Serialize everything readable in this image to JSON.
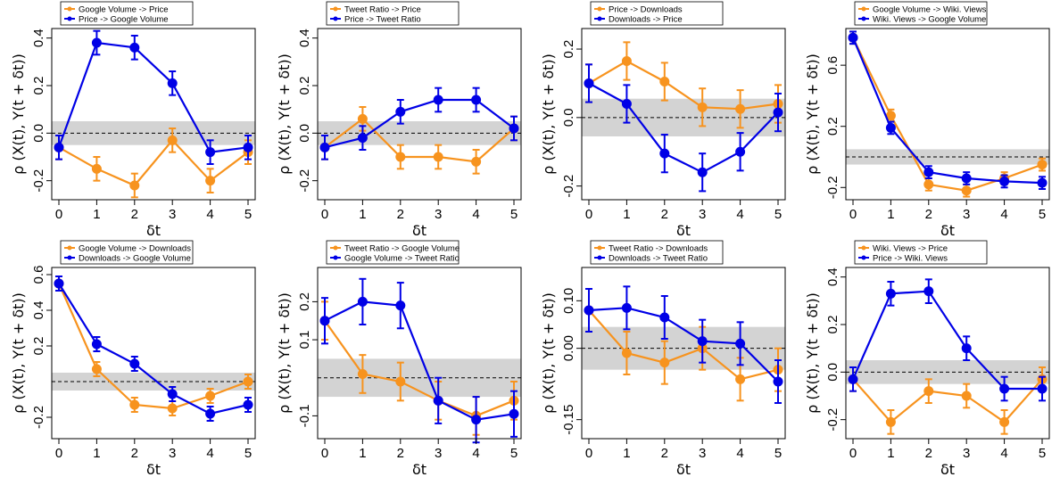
{
  "colors": {
    "series_a": "#F7931E",
    "series_b": "#0000E6",
    "band": "#D3D3D3"
  },
  "chart_data": [
    {
      "type": "line",
      "xlabel": "δt",
      "ylabel": "ρ (X(t), Y(t + δt))",
      "x": [
        0,
        1,
        2,
        3,
        4,
        5
      ],
      "ylim": [
        -0.28,
        0.44
      ],
      "yticks": [
        -0.2,
        0.0,
        0.2,
        0.4
      ],
      "ytick_labels": [
        "-0.2",
        "0.0",
        "0.2",
        "0.4"
      ],
      "band": [
        -0.05,
        0.05
      ],
      "series": [
        {
          "name": "Google Volume -> Price",
          "values": [
            -0.06,
            -0.15,
            -0.22,
            -0.03,
            -0.2,
            -0.08
          ],
          "err": [
            0.05,
            0.05,
            0.05,
            0.05,
            0.05,
            0.05
          ]
        },
        {
          "name": "Price -> Google Volume",
          "values": [
            -0.06,
            0.38,
            0.36,
            0.21,
            -0.08,
            -0.06
          ],
          "err": [
            0.05,
            0.05,
            0.05,
            0.05,
            0.05,
            0.05
          ]
        }
      ]
    },
    {
      "type": "line",
      "xlabel": "δt",
      "ylabel": "ρ (X(t), Y(t + δt))",
      "x": [
        0,
        1,
        2,
        3,
        4,
        5
      ],
      "ylim": [
        -0.28,
        0.44
      ],
      "yticks": [
        -0.2,
        0.0,
        0.2,
        0.4
      ],
      "ytick_labels": [
        "-0.2",
        "0.0",
        "0.2",
        "0.4"
      ],
      "band": [
        -0.05,
        0.05
      ],
      "series": [
        {
          "name": "Tweet Ratio -> Price",
          "values": [
            -0.06,
            0.06,
            -0.1,
            -0.1,
            -0.12,
            0.02
          ],
          "err": [
            0.05,
            0.05,
            0.05,
            0.05,
            0.05,
            0.05
          ]
        },
        {
          "name": "Price -> Tweet Ratio",
          "values": [
            -0.06,
            -0.02,
            0.09,
            0.14,
            0.14,
            0.02
          ],
          "err": [
            0.05,
            0.05,
            0.05,
            0.05,
            0.05,
            0.05
          ]
        }
      ]
    },
    {
      "type": "line",
      "xlabel": "δt",
      "ylabel": "ρ (X(t), Y(t + δt))",
      "x": [
        0,
        1,
        2,
        3,
        4,
        5
      ],
      "ylim": [
        -0.24,
        0.26
      ],
      "yticks": [
        -0.2,
        0.0,
        0.2
      ],
      "ytick_labels": [
        "-0.2",
        "0.0",
        "0.2"
      ],
      "band": [
        -0.055,
        0.055
      ],
      "series": [
        {
          "name": "Price -> Downloads",
          "values": [
            0.1,
            0.165,
            0.105,
            0.03,
            0.025,
            0.04
          ],
          "err": [
            0.055,
            0.055,
            0.055,
            0.055,
            0.055,
            0.055
          ]
        },
        {
          "name": "Downloads -> Price",
          "values": [
            0.1,
            0.04,
            -0.105,
            -0.16,
            -0.1,
            0.015
          ],
          "err": [
            0.055,
            0.055,
            0.055,
            0.055,
            0.055,
            0.055
          ]
        }
      ]
    },
    {
      "type": "line",
      "xlabel": "δt",
      "ylabel": "ρ (X(t), Y(t + δt))",
      "x": [
        0,
        1,
        2,
        3,
        4,
        5
      ],
      "ylim": [
        -0.28,
        0.84
      ],
      "yticks": [
        -0.2,
        0.2,
        0.6
      ],
      "ytick_labels": [
        "-0.2",
        "0.2",
        "0.6"
      ],
      "band": [
        -0.05,
        0.05
      ],
      "series": [
        {
          "name": "Google Volume -> Wiki. Views",
          "values": [
            0.78,
            0.27,
            -0.18,
            -0.22,
            -0.14,
            -0.05
          ],
          "err": [
            0.04,
            0.04,
            0.04,
            0.04,
            0.04,
            0.04
          ]
        },
        {
          "name": "Wiki. Views -> Google Volume",
          "values": [
            0.78,
            0.19,
            -0.1,
            -0.14,
            -0.16,
            -0.17
          ],
          "err": [
            0.04,
            0.04,
            0.04,
            0.04,
            0.04,
            0.04
          ]
        }
      ]
    },
    {
      "type": "line",
      "xlabel": "δt",
      "ylabel": "ρ (X(t), Y(t + δt))",
      "x": [
        0,
        1,
        2,
        3,
        4,
        5
      ],
      "ylim": [
        -0.32,
        0.64
      ],
      "yticks": [
        -0.2,
        0.2,
        0.4,
        0.6
      ],
      "ytick_labels": [
        "-0.2",
        "0.2",
        "0.4",
        "0.6"
      ],
      "band": [
        -0.05,
        0.05
      ],
      "series": [
        {
          "name": "Google Volume -> Downloads",
          "values": [
            0.55,
            0.07,
            -0.13,
            -0.15,
            -0.08,
            0.0
          ],
          "err": [
            0.04,
            0.04,
            0.04,
            0.04,
            0.04,
            0.04
          ]
        },
        {
          "name": "Downloads -> Google Volume",
          "values": [
            0.55,
            0.21,
            0.1,
            -0.07,
            -0.18,
            -0.13
          ],
          "err": [
            0.04,
            0.04,
            0.04,
            0.04,
            0.04,
            0.04
          ]
        }
      ]
    },
    {
      "type": "line",
      "xlabel": "δt",
      "ylabel": "ρ (X(t), Y(t + δt))",
      "x": [
        0,
        1,
        2,
        3,
        4,
        5
      ],
      "ylim": [
        -0.16,
        0.29
      ],
      "yticks": [
        -0.1,
        0.1,
        0.2
      ],
      "ytick_labels": [
        "-0.1",
        "0.1",
        "0.2"
      ],
      "band": [
        -0.05,
        0.05
      ],
      "series": [
        {
          "name": "Tweet Ratio -> Google Volume",
          "values": [
            0.15,
            0.01,
            -0.01,
            -0.06,
            -0.1,
            -0.06
          ],
          "err": [
            0.05,
            0.05,
            0.05,
            0.05,
            0.05,
            0.05
          ]
        },
        {
          "name": "Google Volume -> Tweet Ratio",
          "values": [
            0.15,
            0.2,
            0.19,
            -0.06,
            -0.11,
            -0.095
          ],
          "err": [
            0.06,
            0.06,
            0.06,
            0.06,
            0.06,
            0.06
          ]
        }
      ]
    },
    {
      "type": "line",
      "xlabel": "δt",
      "ylabel": "ρ (X(t), Y(t + δt))",
      "x": [
        0,
        1,
        2,
        3,
        4,
        5
      ],
      "ylim": [
        -0.19,
        0.17
      ],
      "yticks": [
        -0.15,
        0.0,
        0.1
      ],
      "ytick_labels": [
        "-0.15",
        "0.00",
        "0.10"
      ],
      "band": [
        -0.045,
        0.045
      ],
      "series": [
        {
          "name": "Tweet Ratio -> Downloads",
          "values": [
            0.08,
            -0.01,
            -0.03,
            0.0,
            -0.065,
            -0.045
          ],
          "err": [
            0.045,
            0.045,
            0.045,
            0.045,
            0.045,
            0.045
          ]
        },
        {
          "name": "Downloads -> Tweet Ratio",
          "values": [
            0.08,
            0.085,
            0.065,
            0.015,
            0.01,
            -0.07
          ],
          "err": [
            0.045,
            0.045,
            0.045,
            0.045,
            0.045,
            0.045
          ]
        }
      ]
    },
    {
      "type": "line",
      "xlabel": "δt",
      "ylabel": "ρ (X(t), Y(t + δt))",
      "x": [
        0,
        1,
        2,
        3,
        4,
        5
      ],
      "ylim": [
        -0.28,
        0.44
      ],
      "yticks": [
        -0.2,
        0.0,
        0.2,
        0.4
      ],
      "ytick_labels": [
        "-0.2",
        "0.0",
        "0.2",
        "0.4"
      ],
      "band": [
        -0.05,
        0.05
      ],
      "series": [
        {
          "name": "Wiki. Views -> Price",
          "values": [
            -0.03,
            -0.21,
            -0.08,
            -0.1,
            -0.21,
            -0.03
          ],
          "err": [
            0.05,
            0.05,
            0.05,
            0.05,
            0.05,
            0.05
          ]
        },
        {
          "name": "Price -> Wiki. Views",
          "values": [
            -0.03,
            0.33,
            0.34,
            0.1,
            -0.07,
            -0.07
          ],
          "err": [
            0.05,
            0.05,
            0.05,
            0.05,
            0.05,
            0.05
          ]
        }
      ]
    }
  ]
}
